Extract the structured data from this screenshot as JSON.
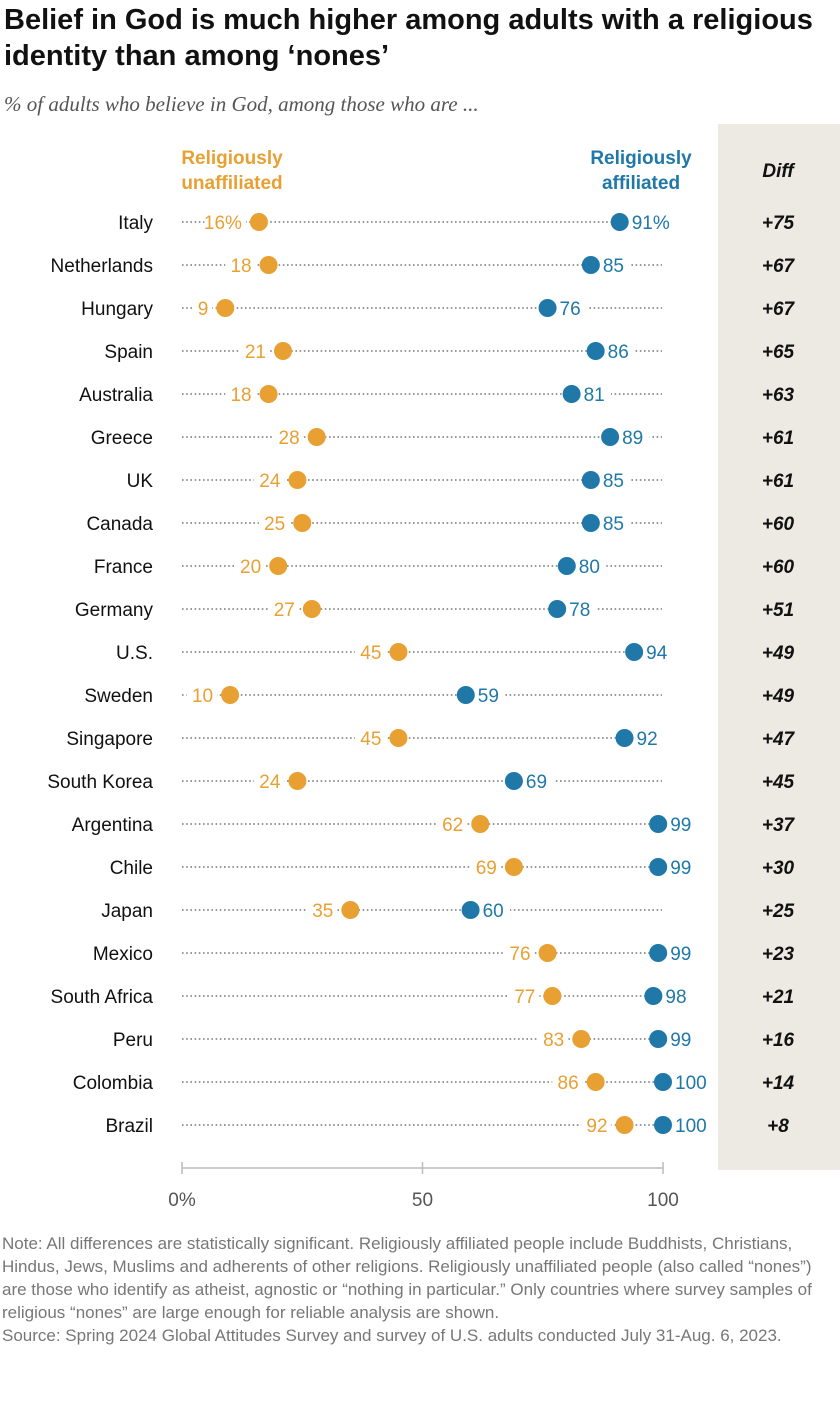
{
  "title": "Belief in God is much higher among adults with a religious identity than among ‘nones’",
  "subtitle": "% of adults who believe in God, among those who are ...",
  "colors": {
    "unaffiliated": "#E8A033",
    "affiliated": "#1F78A8",
    "diff_bg": "#EDEAE3",
    "dots": "#999999",
    "axis": "#bbbbbb"
  },
  "chart_data": {
    "type": "scatter",
    "legend": {
      "unaffiliated": [
        "Religiously",
        "unaffiliated"
      ],
      "affiliated": [
        "Religiously",
        "affiliated"
      ],
      "diff": "Diff"
    },
    "xlim": [
      0,
      100
    ],
    "ticks": [
      0,
      50,
      100
    ],
    "tick_labels": [
      "0%",
      "50",
      "100"
    ],
    "categories": [
      "Italy",
      "Netherlands",
      "Hungary",
      "Spain",
      "Australia",
      "Greece",
      "UK",
      "Canada",
      "France",
      "Germany",
      "U.S.",
      "Sweden",
      "Singapore",
      "South Korea",
      "Argentina",
      "Chile",
      "Japan",
      "Mexico",
      "South Africa",
      "Peru",
      "Colombia",
      "Brazil"
    ],
    "series": [
      {
        "name": "Religiously unaffiliated",
        "values": [
          16,
          18,
          9,
          21,
          18,
          28,
          24,
          25,
          20,
          27,
          45,
          10,
          45,
          24,
          62,
          69,
          35,
          76,
          77,
          83,
          86,
          92
        ]
      },
      {
        "name": "Religiously affiliated",
        "values": [
          91,
          85,
          76,
          86,
          81,
          89,
          85,
          85,
          80,
          78,
          94,
          59,
          92,
          69,
          99,
          99,
          60,
          99,
          98,
          99,
          100,
          100
        ]
      }
    ],
    "value_labels_unaffiliated": [
      "16%",
      "18",
      "9",
      "21",
      "18",
      "28",
      "24",
      "25",
      "20",
      "27",
      "45",
      "10",
      "45",
      "24",
      "62",
      "69",
      "35",
      "76",
      "77",
      "83",
      "86",
      "92"
    ],
    "value_labels_affiliated": [
      "91%",
      "85",
      "76",
      "86",
      "81",
      "89",
      "85",
      "85",
      "80",
      "78",
      "94",
      "59",
      "92",
      "69",
      "99",
      "99",
      "60",
      "99",
      "98",
      "99",
      "100",
      "100"
    ],
    "diff": [
      "+75",
      "+67",
      "+67",
      "+65",
      "+63",
      "+61",
      "+61",
      "+60",
      "+60",
      "+51",
      "+49",
      "+49",
      "+47",
      "+45",
      "+37",
      "+30",
      "+25",
      "+23",
      "+21",
      "+16",
      "+14",
      "+8"
    ]
  },
  "note": "Note: All differences are statistically significant. Religiously affiliated people include Buddhists, Christians, Hindus, Jews, Muslims and adherents of other religions. Religiously unaffiliated people (also called “nones”) are those who identify as atheist, agnostic or “nothing in particular.” Only countries where survey samples of religious “nones” are large enough for reliable analysis are shown.",
  "source": "Source: Spring 2024 Global Attitudes Survey and survey of U.S. adults conducted July 31-Aug. 6, 2023."
}
